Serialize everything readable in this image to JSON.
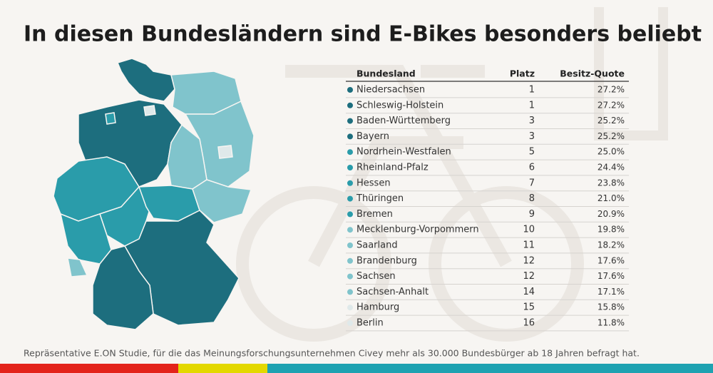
{
  "header": {
    "title": "In diesen Bundesländern sind E-Bikes besonders beliebt"
  },
  "table": {
    "columns": [
      "Bundesland",
      "Platz",
      "Besitz-Quote"
    ],
    "rows": [
      {
        "name": "Niedersachsen",
        "rank": 1,
        "quote": "27.2%",
        "color": "#1d6e7e"
      },
      {
        "name": "Schleswig-Holstein",
        "rank": 1,
        "quote": "27.2%",
        "color": "#1d6e7e"
      },
      {
        "name": "Baden-Württemberg",
        "rank": 3,
        "quote": "25.2%",
        "color": "#1d6e7e"
      },
      {
        "name": "Bayern",
        "rank": 3,
        "quote": "25.2%",
        "color": "#1d6e7e"
      },
      {
        "name": "Nordrhein-Westfalen",
        "rank": 5,
        "quote": "25.0%",
        "color": "#2a9caa"
      },
      {
        "name": "Rheinland-Pfalz",
        "rank": 6,
        "quote": "24.4%",
        "color": "#2a9caa"
      },
      {
        "name": "Hessen",
        "rank": 7,
        "quote": "23.8%",
        "color": "#2a9caa"
      },
      {
        "name": "Thüringen",
        "rank": 8,
        "quote": "21.0%",
        "color": "#2a9caa"
      },
      {
        "name": "Bremen",
        "rank": 9,
        "quote": "20.9%",
        "color": "#2a9caa"
      },
      {
        "name": "Mecklenburg-Vorpommern",
        "rank": 10,
        "quote": "19.8%",
        "color": "#80c4cc"
      },
      {
        "name": "Saarland",
        "rank": 11,
        "quote": "18.2%",
        "color": "#80c4cc"
      },
      {
        "name": "Brandenburg",
        "rank": 12,
        "quote": "17.6%",
        "color": "#80c4cc"
      },
      {
        "name": "Sachsen",
        "rank": 12,
        "quote": "17.6%",
        "color": "#80c4cc"
      },
      {
        "name": "Sachsen-Anhalt",
        "rank": 14,
        "quote": "17.1%",
        "color": "#80c4cc"
      },
      {
        "name": "Hamburg",
        "rank": 15,
        "quote": "15.8%",
        "color": "#dfe9ea"
      },
      {
        "name": "Berlin",
        "rank": 16,
        "quote": "11.8%",
        "color": "#dfe9ea"
      }
    ]
  },
  "footer": {
    "note": "Repräsentative E.ON Studie, für die das Meinungsforschungsunternehmen Civey mehr als 30.000 Bundesbürger ab 18 Jahren befragt hat."
  }
}
